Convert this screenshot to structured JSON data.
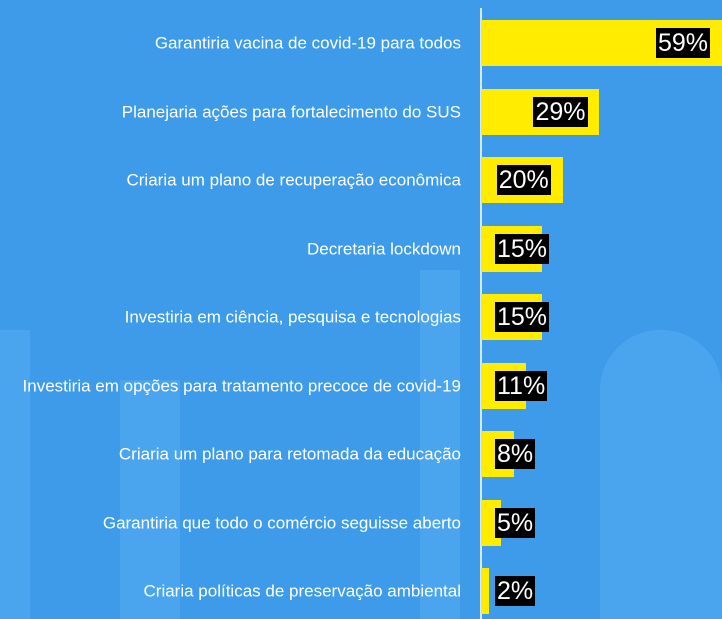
{
  "chart_data": {
    "type": "bar",
    "orientation": "horizontal",
    "categories": [
      "Garantiria vacina de covid-19 para todos",
      "Planejaria ações para fortalecimento do SUS",
      "Criaria um plano de recuperação econômica",
      "Decretaria lockdown",
      "Investiria em ciência, pesquisa e tecnologias",
      "Investiria em opções para tratamento precoce de covid-19",
      "Criaria um plano para retomada da educação",
      "Garantiria que todo o comércio seguisse aberto",
      "Criaria políticas de preservação ambiental"
    ],
    "values": [
      59,
      29,
      20,
      15,
      15,
      11,
      8,
      5,
      2
    ],
    "value_labels": [
      "59%",
      "29%",
      "20%",
      "15%",
      "15%",
      "11%",
      "8%",
      "5%",
      "2%"
    ],
    "color": "#ffec00",
    "xlim": [
      0,
      59
    ]
  }
}
